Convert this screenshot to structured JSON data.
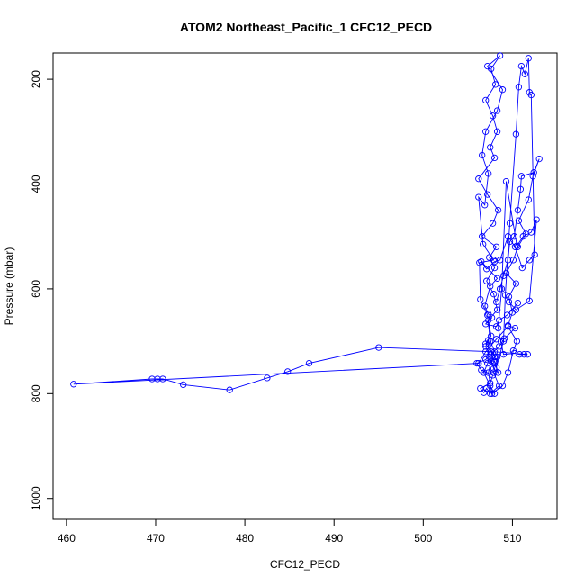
{
  "chart_data": {
    "type": "line",
    "title": "ATOM2 Northeast_Pacific_1 CFC12_PECD",
    "xlabel": "CFC12_PECD",
    "ylabel": "Pressure (mbar)",
    "xlim": [
      458.5,
      515
    ],
    "ylim": [
      1040,
      150
    ],
    "y_inverted": true,
    "grid": false,
    "legend": "none",
    "x_ticks": [
      460,
      470,
      480,
      490,
      500,
      510
    ],
    "y_ticks": [
      200,
      400,
      600,
      800,
      1000
    ],
    "series_color": "#0000ff",
    "marker": "open-circle",
    "points": [
      [
        508.0,
        800
      ],
      [
        507.5,
        785
      ],
      [
        506.8,
        760
      ],
      [
        507.2,
        742
      ],
      [
        508.1,
        730
      ],
      [
        507.0,
        705
      ],
      [
        507.6,
        690
      ],
      [
        507.3,
        660
      ],
      [
        508.3,
        640
      ],
      [
        507.9,
        610
      ],
      [
        507.1,
        585
      ],
      [
        508.0,
        560
      ],
      [
        507.4,
        540
      ],
      [
        508.2,
        520
      ],
      [
        506.6,
        500
      ],
      [
        507.8,
        475
      ],
      [
        508.4,
        450
      ],
      [
        507.2,
        420
      ],
      [
        506.2,
        390
      ],
      [
        508.0,
        350
      ],
      [
        507.5,
        330
      ],
      [
        508.3,
        300
      ],
      [
        507.8,
        270
      ],
      [
        507.0,
        240
      ],
      [
        508.1,
        210
      ],
      [
        507.6,
        180
      ],
      [
        508.6,
        155
      ],
      [
        507.2,
        175
      ],
      [
        508.9,
        220
      ],
      [
        508.3,
        260
      ],
      [
        507.0,
        300
      ],
      [
        506.6,
        345
      ],
      [
        507.3,
        380
      ],
      [
        506.9,
        440
      ],
      [
        506.2,
        425
      ],
      [
        506.7,
        515
      ],
      [
        507.9,
        545
      ],
      [
        506.3,
        550
      ],
      [
        506.4,
        620
      ],
      [
        507.2,
        650
      ],
      [
        507.5,
        700
      ],
      [
        508.3,
        730
      ],
      [
        507.9,
        760
      ],
      [
        508.5,
        785
      ],
      [
        507.5,
        800
      ],
      [
        507.1,
        790
      ],
      [
        506.8,
        798
      ],
      [
        506.4,
        790
      ],
      [
        507.5,
        780
      ],
      [
        507.8,
        765
      ],
      [
        506.5,
        755
      ],
      [
        506.0,
        742
      ],
      [
        507.0,
        735
      ],
      [
        507.6,
        725
      ],
      [
        508.5,
        710
      ],
      [
        509.1,
        695
      ],
      [
        510.3,
        675
      ],
      [
        509.5,
        670
      ],
      [
        510.0,
        645
      ],
      [
        509.6,
        615
      ],
      [
        510.4,
        590
      ],
      [
        509.3,
        570
      ],
      [
        510.1,
        545
      ],
      [
        510.6,
        520
      ],
      [
        511.5,
        495
      ],
      [
        510.7,
        470
      ],
      [
        511.8,
        430
      ],
      [
        512.3,
        385
      ],
      [
        513.0,
        352
      ],
      [
        512.4,
        378
      ],
      [
        511.0,
        385
      ],
      [
        510.9,
        410
      ],
      [
        510.6,
        450
      ],
      [
        510.2,
        500
      ],
      [
        509.7,
        510
      ],
      [
        509.5,
        545
      ],
      [
        509.0,
        575
      ],
      [
        508.6,
        600
      ],
      [
        508.2,
        625
      ],
      [
        509.6,
        625
      ],
      [
        510.4,
        640
      ],
      [
        511.9,
        623
      ],
      [
        512.7,
        468
      ],
      [
        512.1,
        492
      ],
      [
        511.2,
        500
      ],
      [
        510.5,
        518
      ],
      [
        509.3,
        395
      ],
      [
        508.8,
        600
      ],
      [
        508.4,
        675
      ],
      [
        508.7,
        700
      ],
      [
        509.0,
        725
      ],
      [
        510.2,
        723
      ],
      [
        510.8,
        725
      ],
      [
        511.3,
        725
      ],
      [
        511.7,
        725
      ],
      [
        508.0,
        720
      ],
      [
        495.0,
        712
      ],
      [
        487.2,
        742
      ],
      [
        484.8,
        758
      ],
      [
        482.5,
        770
      ],
      [
        478.3,
        793
      ],
      [
        473.1,
        783
      ],
      [
        470.8,
        772
      ],
      [
        470.2,
        772
      ],
      [
        469.6,
        772
      ],
      [
        460.8,
        782
      ],
      [
        506.2,
        742
      ],
      [
        507.0,
        720
      ],
      [
        508.2,
        696
      ],
      [
        509.5,
        672
      ],
      [
        510.5,
        700
      ],
      [
        510.1,
        718
      ],
      [
        509.5,
        760
      ],
      [
        508.9,
        785
      ],
      [
        507.7,
        800
      ],
      [
        507.3,
        760
      ],
      [
        507.6,
        738
      ],
      [
        508.0,
        738
      ],
      [
        508.4,
        760
      ],
      [
        507.9,
        752
      ],
      [
        507.4,
        730
      ],
      [
        507.0,
        710
      ],
      [
        507.3,
        698
      ],
      [
        507.6,
        720
      ],
      [
        508.0,
        740
      ],
      [
        508.2,
        750
      ],
      [
        509.0,
        700
      ],
      [
        509.2,
        612
      ],
      [
        509.7,
        475
      ],
      [
        510.4,
        305
      ],
      [
        510.7,
        215
      ],
      [
        511.0,
        175
      ],
      [
        511.4,
        190
      ],
      [
        511.8,
        160
      ],
      [
        511.9,
        225
      ],
      [
        512.1,
        230
      ],
      [
        512.5,
        535
      ],
      [
        511.9,
        545
      ],
      [
        511.1,
        560
      ],
      [
        510.3,
        520
      ],
      [
        509.5,
        500
      ],
      [
        508.6,
        545
      ],
      [
        508.0,
        548
      ],
      [
        507.1,
        562
      ],
      [
        506.5,
        548
      ],
      [
        508.3,
        580
      ],
      [
        507.5,
        595
      ],
      [
        506.9,
        633
      ],
      [
        507.3,
        648
      ],
      [
        507.7,
        655
      ],
      [
        507.0,
        667
      ],
      [
        508.2,
        672
      ],
      [
        508.5,
        660
      ],
      [
        509.4,
        650
      ],
      [
        510.6,
        627
      ]
    ]
  }
}
